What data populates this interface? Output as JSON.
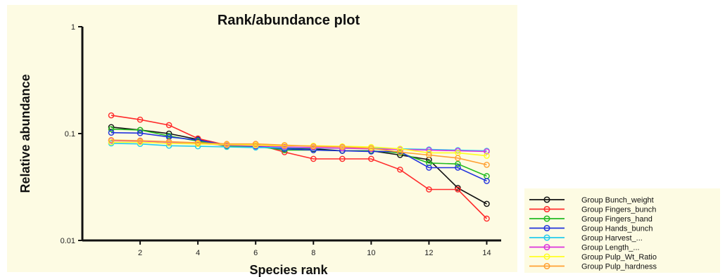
{
  "chart_data": {
    "type": "line",
    "title": "Rank/abundance plot",
    "xlabel": "Species rank",
    "ylabel": "Relative abundance",
    "yscale": "log",
    "xlim": [
      0,
      14.5
    ],
    "ylim": [
      0.01,
      1
    ],
    "x_ticks": [
      2,
      4,
      6,
      8,
      10,
      12,
      14
    ],
    "y_ticks": [
      0.01,
      0.1,
      1
    ],
    "y_tick_labels": [
      "0.01",
      "0.1",
      "1"
    ],
    "legend_position": "bottom-right, outside plot",
    "x": [
      1,
      2,
      3,
      4,
      5,
      6,
      7,
      8,
      9,
      10,
      11,
      12,
      13,
      14
    ],
    "series": [
      {
        "name": "Group Bunch_weight",
        "color": "#111111",
        "values": [
          0.115,
          0.108,
          0.1,
          0.088,
          0.076,
          0.077,
          0.073,
          0.072,
          0.069,
          0.069,
          0.063,
          0.057,
          0.031,
          0.022
        ]
      },
      {
        "name": "Group Fingers_bunch",
        "color": "#ff2b2b",
        "values": [
          0.148,
          0.135,
          0.12,
          0.09,
          0.078,
          0.08,
          0.067,
          0.058,
          0.058,
          0.058,
          0.046,
          0.03,
          0.03,
          0.016
        ]
      },
      {
        "name": "Group Fingers_hand",
        "color": "#22bb22",
        "values": [
          0.11,
          0.108,
          0.095,
          0.085,
          0.076,
          0.076,
          0.07,
          0.07,
          0.069,
          0.069,
          0.066,
          0.053,
          0.052,
          0.04
        ]
      },
      {
        "name": "Group Hands_bunch",
        "color": "#2233dd",
        "values": [
          0.102,
          0.101,
          0.093,
          0.087,
          0.078,
          0.076,
          0.072,
          0.07,
          0.069,
          0.068,
          0.068,
          0.048,
          0.048,
          0.036
        ]
      },
      {
        "name": "Group Harvest_...",
        "color": "#22ccee",
        "values": [
          0.081,
          0.08,
          0.077,
          0.076,
          0.075,
          0.074,
          0.074,
          0.073,
          0.073,
          0.073,
          0.072,
          0.071,
          0.07,
          0.069
        ]
      },
      {
        "name": "Group Length_...",
        "color": "#dd33dd",
        "values": [
          0.086,
          0.085,
          0.083,
          0.081,
          0.078,
          0.077,
          0.075,
          0.074,
          0.073,
          0.072,
          0.071,
          0.07,
          0.069,
          0.068
        ]
      },
      {
        "name": "Group Pulp_Wt_Ratio",
        "color": "#ffff22",
        "values": [
          0.083,
          0.083,
          0.081,
          0.08,
          0.079,
          0.078,
          0.077,
          0.077,
          0.076,
          0.075,
          0.072,
          0.066,
          0.066,
          0.062
        ]
      },
      {
        "name": "Group Pulp_hardness",
        "color": "#ffa033",
        "values": [
          0.087,
          0.086,
          0.084,
          0.082,
          0.08,
          0.08,
          0.078,
          0.076,
          0.075,
          0.073,
          0.067,
          0.063,
          0.059,
          0.051
        ]
      }
    ]
  }
}
